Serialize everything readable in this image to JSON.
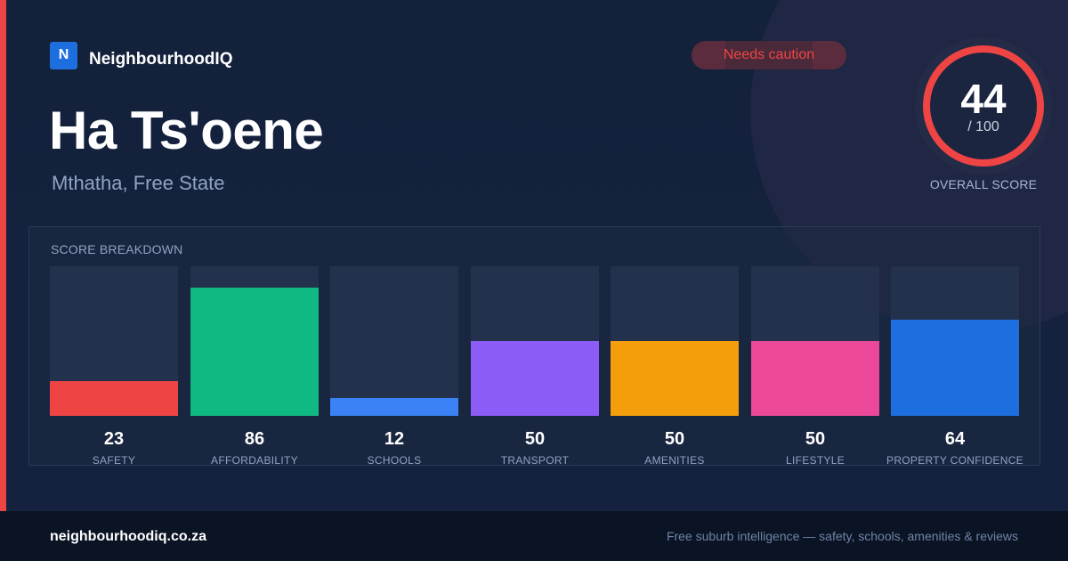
{
  "brand": {
    "logo_letter": "N",
    "name": "NeighbourhoodIQ",
    "color": "#1d6fe0"
  },
  "status_badge": {
    "label": "Needs caution",
    "color": "#ef4444"
  },
  "suburb": {
    "name": "Ha Ts'oene",
    "location": "Mthatha, Free State"
  },
  "overall_score": {
    "value": "44",
    "max_text": "/ 100",
    "fraction": 0.44,
    "label": "OVERALL SCORE",
    "ring_color": "#ef4444",
    "track_color": "#27304a"
  },
  "accent_color": "#ef4444",
  "breakdown": {
    "heading": "SCORE BREAKDOWN",
    "max": 100,
    "items": [
      {
        "label": "SAFETY",
        "value": 23,
        "color": "#ef4444"
      },
      {
        "label": "AFFORDABILITY",
        "value": 86,
        "color": "#10b981"
      },
      {
        "label": "SCHOOLS",
        "value": 12,
        "color": "#3b82f6"
      },
      {
        "label": "TRANSPORT",
        "value": 50,
        "color": "#8b5cf6"
      },
      {
        "label": "AMENITIES",
        "value": 50,
        "color": "#f59e0b"
      },
      {
        "label": "LIFESTYLE",
        "value": 50,
        "color": "#ec4899"
      },
      {
        "label": "PROPERTY CONFIDENCE",
        "value": 64,
        "color": "#1d6fe0"
      }
    ]
  },
  "footer": {
    "domain": "neighbourhoodiq.co.za",
    "tagline": "Free suburb intelligence — safety, schools, amenities & reviews"
  }
}
